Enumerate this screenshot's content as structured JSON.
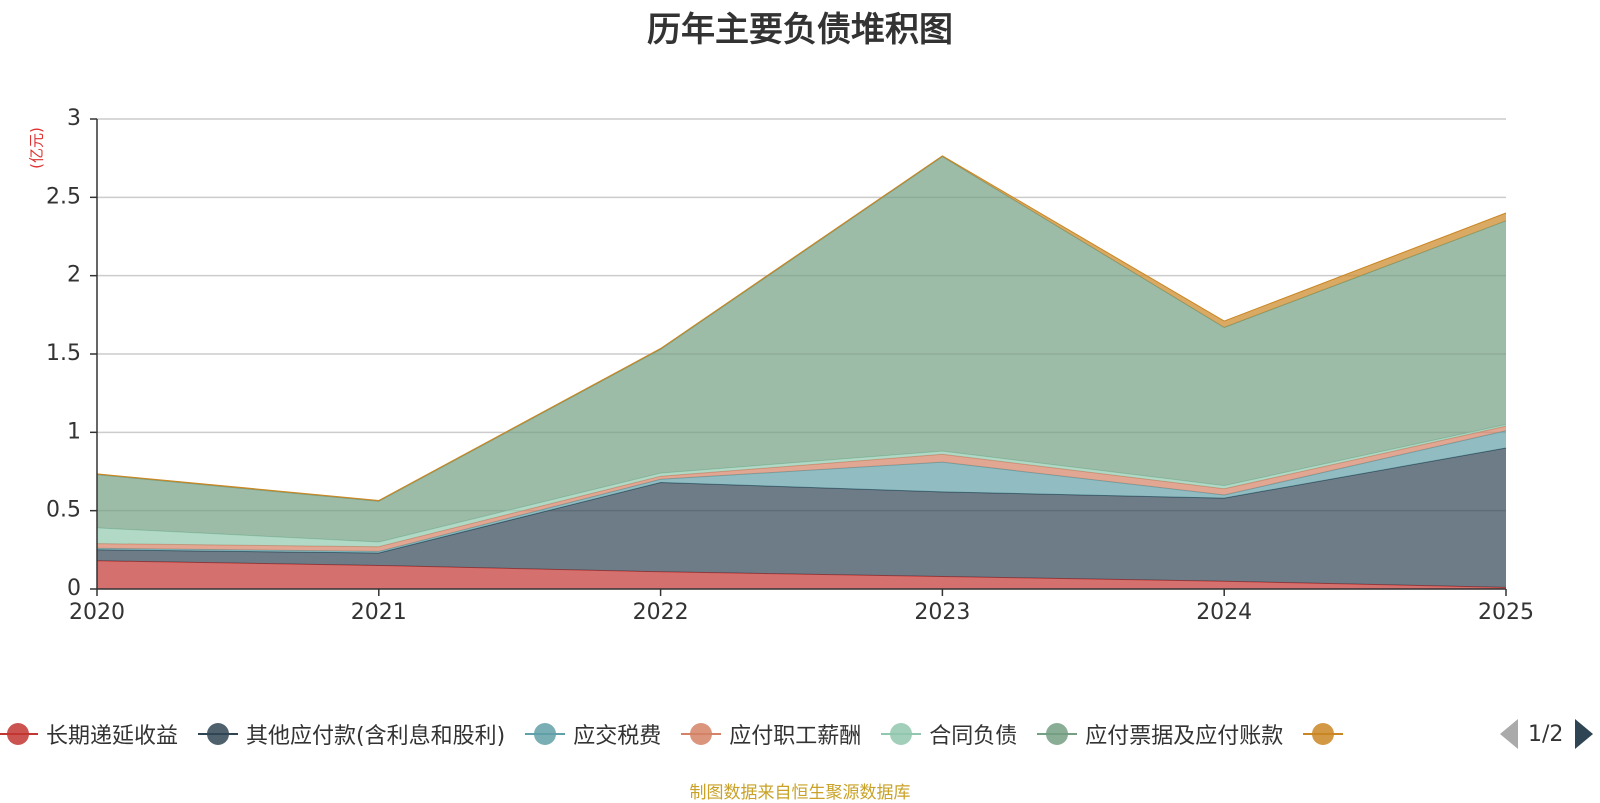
{
  "chart_data": {
    "type": "area",
    "stacked": true,
    "title": "历年主要负债堆积图",
    "ylabel": "(亿元)",
    "xlabel": "",
    "categories": [
      "2020",
      "2021",
      "2022",
      "2023",
      "2024",
      "2025"
    ],
    "ylim": [
      0,
      3
    ],
    "yticks": [
      "0",
      "0.5",
      "1",
      "1.5",
      "2",
      "2.5",
      "3"
    ],
    "grid": true,
    "legend_position": "bottom",
    "series": [
      {
        "name": "长期递延收益",
        "values": [
          0.18,
          0.15,
          0.11,
          0.08,
          0.05,
          0.01
        ],
        "color": "#c23531"
      },
      {
        "name": "其他应付款(含利息和股利)",
        "values": [
          0.07,
          0.08,
          0.57,
          0.54,
          0.53,
          0.89
        ],
        "color": "#2f4554"
      },
      {
        "name": "应交税费",
        "values": [
          0.01,
          0.01,
          0.02,
          0.19,
          0.02,
          0.11
        ],
        "color": "#61a0a8"
      },
      {
        "name": "应付职工薪酬",
        "values": [
          0.03,
          0.03,
          0.02,
          0.05,
          0.04,
          0.03
        ],
        "color": "#d48265"
      },
      {
        "name": "合同负债",
        "values": [
          0.1,
          0.03,
          0.02,
          0.02,
          0.02,
          0.01
        ],
        "color": "#91c7ae"
      },
      {
        "name": "应付票据及应付账款",
        "values": [
          0.34,
          0.26,
          0.79,
          1.88,
          1.01,
          1.3
        ],
        "color": "#749f83"
      },
      {
        "name": "",
        "values": [
          0.005,
          0.005,
          0.005,
          0.005,
          0.04,
          0.05
        ],
        "color": "#ca8622"
      }
    ]
  },
  "legend": {
    "page_indicator": "1/2"
  },
  "source_text": "制图数据来自恒生聚源数据库",
  "colors": {
    "title": "#333333",
    "axis": "#333333",
    "grid": "#cccccc",
    "unit": "#e03131",
    "source": "#c9a227",
    "pager_active": "#2f4554",
    "pager_inactive": "#aaaaaa"
  }
}
